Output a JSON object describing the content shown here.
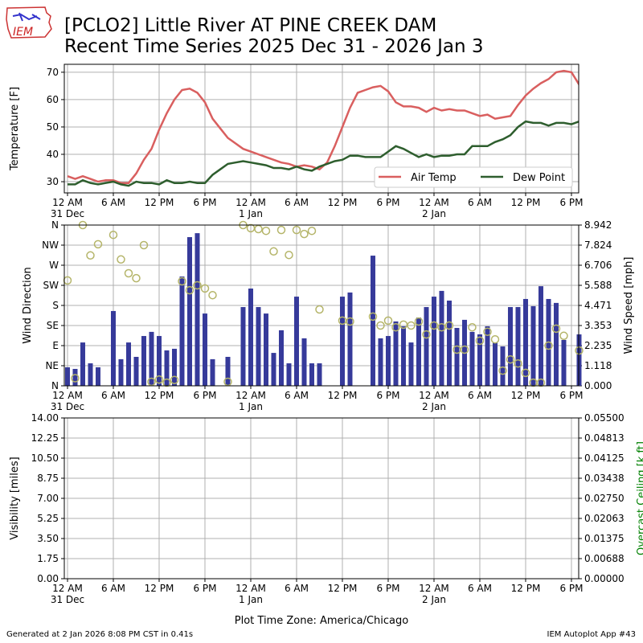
{
  "header": {
    "logo_text": "IEM",
    "title_line1": "[PCLO2] Little River  AT PINE CREEK DAM",
    "title_line2": "Recent Time Series 2025 Dec 31 - 2026 Jan 3"
  },
  "footer": {
    "generated": "Generated at 2 Jan 2026 8:08 PM CST in 0.41s",
    "app": "IEM Autoplot App #43"
  },
  "colors": {
    "air_temp": "#d95f5f",
    "dew_point": "#2e5e2e",
    "wind_speed": "#363a9a",
    "wind_dir": "#b5b56a",
    "ceiling_label": "#008000"
  },
  "chart_data": [
    {
      "type": "line",
      "ylabel": "Temperature [F]",
      "ylim": [
        25.9,
        72.9
      ],
      "yticks": [
        30,
        40,
        50,
        60,
        70
      ],
      "xlim_hours_since_2025_12_31_00": [
        -0.42,
        66.95
      ],
      "grid": true,
      "legend_placement": "lower-right",
      "series": [
        {
          "name": "Air Temp",
          "x": [
            0,
            1,
            2,
            3,
            4,
            5,
            6,
            7,
            8,
            9,
            10,
            11,
            12,
            13,
            14,
            15,
            16,
            17,
            18,
            19,
            20,
            21,
            22,
            23,
            24,
            25,
            26,
            27,
            28,
            29,
            30,
            31,
            32,
            33,
            34,
            35,
            36,
            37,
            38,
            39,
            40,
            41,
            42,
            43,
            44,
            45,
            46,
            47,
            48,
            49,
            50,
            51,
            52,
            53,
            54,
            55,
            56,
            57,
            58,
            59,
            60,
            61,
            62,
            63,
            64,
            65,
            66,
            67
          ],
          "y": [
            32,
            31,
            32,
            31,
            30,
            30.5,
            30.5,
            29.5,
            29.5,
            33,
            38,
            42,
            49,
            55,
            60,
            63.5,
            64,
            62.5,
            59,
            53,
            49.5,
            46,
            44,
            42,
            41,
            40,
            39,
            38,
            37,
            36.5,
            35.5,
            36,
            35.5,
            34.5,
            37,
            43,
            50,
            57,
            62.5,
            63.5,
            64.5,
            65,
            63,
            59,
            57.5,
            57.5,
            57,
            55.5,
            57,
            56,
            56.5,
            56,
            56,
            55,
            54,
            54.5,
            53,
            53.5,
            54,
            58,
            61.5,
            64,
            66,
            67.5,
            70,
            70.5,
            70,
            65.5
          ]
        },
        {
          "name": "Dew Point",
          "x": [
            0,
            1,
            2,
            3,
            4,
            5,
            6,
            7,
            8,
            9,
            10,
            11,
            12,
            13,
            14,
            15,
            16,
            17,
            18,
            19,
            20,
            21,
            22,
            23,
            24,
            25,
            26,
            27,
            28,
            29,
            30,
            31,
            32,
            33,
            34,
            35,
            36,
            37,
            38,
            39,
            40,
            41,
            42,
            43,
            44,
            45,
            46,
            47,
            48,
            49,
            50,
            51,
            52,
            53,
            54,
            55,
            56,
            57,
            58,
            59,
            60,
            61,
            62,
            63,
            64,
            65,
            66,
            67
          ],
          "y": [
            29,
            29,
            30.5,
            29.5,
            29,
            29.5,
            30,
            29,
            28.5,
            30,
            29.5,
            29.5,
            29,
            30.5,
            29.5,
            29.5,
            30,
            29.5,
            29.5,
            32.5,
            34.5,
            36.5,
            37,
            37.5,
            37,
            36.5,
            36,
            35,
            35,
            34.5,
            35.5,
            34.5,
            34,
            35.5,
            36.5,
            37.5,
            38,
            39.5,
            39.5,
            39,
            39,
            39,
            41,
            43,
            42,
            40.5,
            39,
            40,
            39,
            39.5,
            39.5,
            40,
            40,
            43,
            43,
            43,
            44.5,
            45.5,
            47,
            50,
            52,
            51.5,
            51.5,
            50.5,
            51.5,
            51.5,
            51,
            52
          ]
        }
      ]
    },
    {
      "type": "bar+scatter",
      "ylabel": "Wind Direction",
      "y2label": "Wind Speed [mph]",
      "ylim": [
        0,
        360
      ],
      "yticks": [
        0,
        45,
        90,
        135,
        180,
        225,
        270,
        315,
        360
      ],
      "ytick_labels": [
        "N",
        "NE",
        "E",
        "SE",
        "S",
        "SW",
        "W",
        "NW",
        "N"
      ],
      "y2lim": [
        0,
        8.942
      ],
      "y2tick_labels": [
        "0.000",
        "1.118",
        "2.235",
        "3.353",
        "4.471",
        "5.588",
        "6.706",
        "7.824",
        "8.942"
      ],
      "series": [
        {
          "name": "Wind Speed",
          "kind": "bar",
          "x": [
            0,
            1,
            2,
            3,
            4,
            6,
            7,
            8,
            9,
            10,
            11,
            12,
            13,
            14,
            15,
            16,
            17,
            18,
            19,
            21,
            23,
            24,
            25,
            26,
            27,
            28,
            29,
            30,
            31,
            32,
            33,
            36,
            37,
            40,
            41,
            42,
            43,
            44,
            45,
            46,
            47,
            48,
            49,
            50,
            51,
            52,
            53,
            54,
            55,
            56,
            57,
            58,
            59,
            60,
            61,
            62,
            63,
            64,
            65,
            67
          ],
          "y": [
            1.03,
            0.94,
            2.41,
            1.25,
            1.03,
            4.16,
            1.48,
            2.41,
            1.61,
            2.77,
            3.0,
            2.77,
            1.97,
            2.06,
            6.08,
            8.27,
            8.49,
            4.02,
            1.48,
            1.61,
            4.38,
            5.41,
            4.38,
            4.02,
            1.83,
            3.09,
            1.25,
            4.96,
            2.64,
            1.25,
            1.25,
            4.96,
            5.19,
            7.24,
            2.64,
            2.77,
            3.58,
            3.31,
            2.41,
            3.8,
            4.38,
            4.96,
            5.28,
            4.74,
            3.22,
            3.67,
            3.0,
            2.86,
            3.31,
            2.41,
            2.19,
            4.38,
            4.38,
            4.83,
            4.43,
            5.54,
            4.83,
            4.61,
            2.55,
            2.86
          ]
        },
        {
          "name": "Wind Direction",
          "kind": "scatter",
          "x": [
            0,
            1,
            2,
            3,
            4,
            6,
            7,
            8,
            9,
            10,
            11,
            12,
            13,
            14,
            15,
            16,
            17,
            18,
            19,
            21,
            23,
            24,
            25,
            26,
            27,
            28,
            29,
            30,
            31,
            32,
            33,
            36,
            37,
            40,
            41,
            42,
            43,
            44,
            45,
            46,
            47,
            48,
            49,
            50,
            51,
            52,
            53,
            54,
            55,
            56,
            57,
            58,
            59,
            60,
            61,
            62,
            63,
            64,
            65,
            67
          ],
          "y": [
            236,
            17,
            360,
            292,
            317,
            338,
            283,
            252,
            241,
            315,
            9,
            14,
            7,
            13,
            234,
            214,
            225,
            218,
            203,
            9,
            360,
            353,
            351,
            347,
            301,
            349,
            293,
            349,
            340,
            347,
            171,
            146,
            144,
            155,
            135,
            146,
            131,
            137,
            135,
            144,
            115,
            135,
            131,
            135,
            81,
            81,
            131,
            101,
            121,
            104,
            34,
            59,
            50,
            29,
            7,
            7,
            90,
            128,
            112,
            79
          ]
        }
      ]
    },
    {
      "type": "line",
      "ylabel": "Visibility [miles]",
      "y2label": "Overcast Ceiling [k ft]",
      "ylim": [
        0,
        14
      ],
      "ytick_labels": [
        "0.00",
        "1.75",
        "3.50",
        "5.25",
        "7.00",
        "8.75",
        "10.50",
        "12.25",
        "14.00"
      ],
      "y2lim": [
        0,
        0.055
      ],
      "y2tick_labels": [
        "0.00000",
        "0.00688",
        "0.01375",
        "0.02063",
        "0.02750",
        "0.03438",
        "0.04125",
        "0.04813",
        "0.05500"
      ],
      "series": []
    }
  ],
  "xaxis": {
    "tick_hours": [
      0,
      6,
      12,
      18,
      24,
      30,
      36,
      42,
      48,
      54,
      60,
      66
    ],
    "tick_labels": [
      "12 AM",
      "6 AM",
      "12 PM",
      "6 PM",
      "12 AM",
      "6 AM",
      "12 PM",
      "6 PM",
      "12 AM",
      "6 AM",
      "12 PM",
      "6 PM"
    ],
    "date_labels": {
      "0": "31 Dec",
      "24": "1 Jan",
      "48": "2 Jan"
    },
    "xlabel": "Plot Time Zone: America/Chicago"
  }
}
